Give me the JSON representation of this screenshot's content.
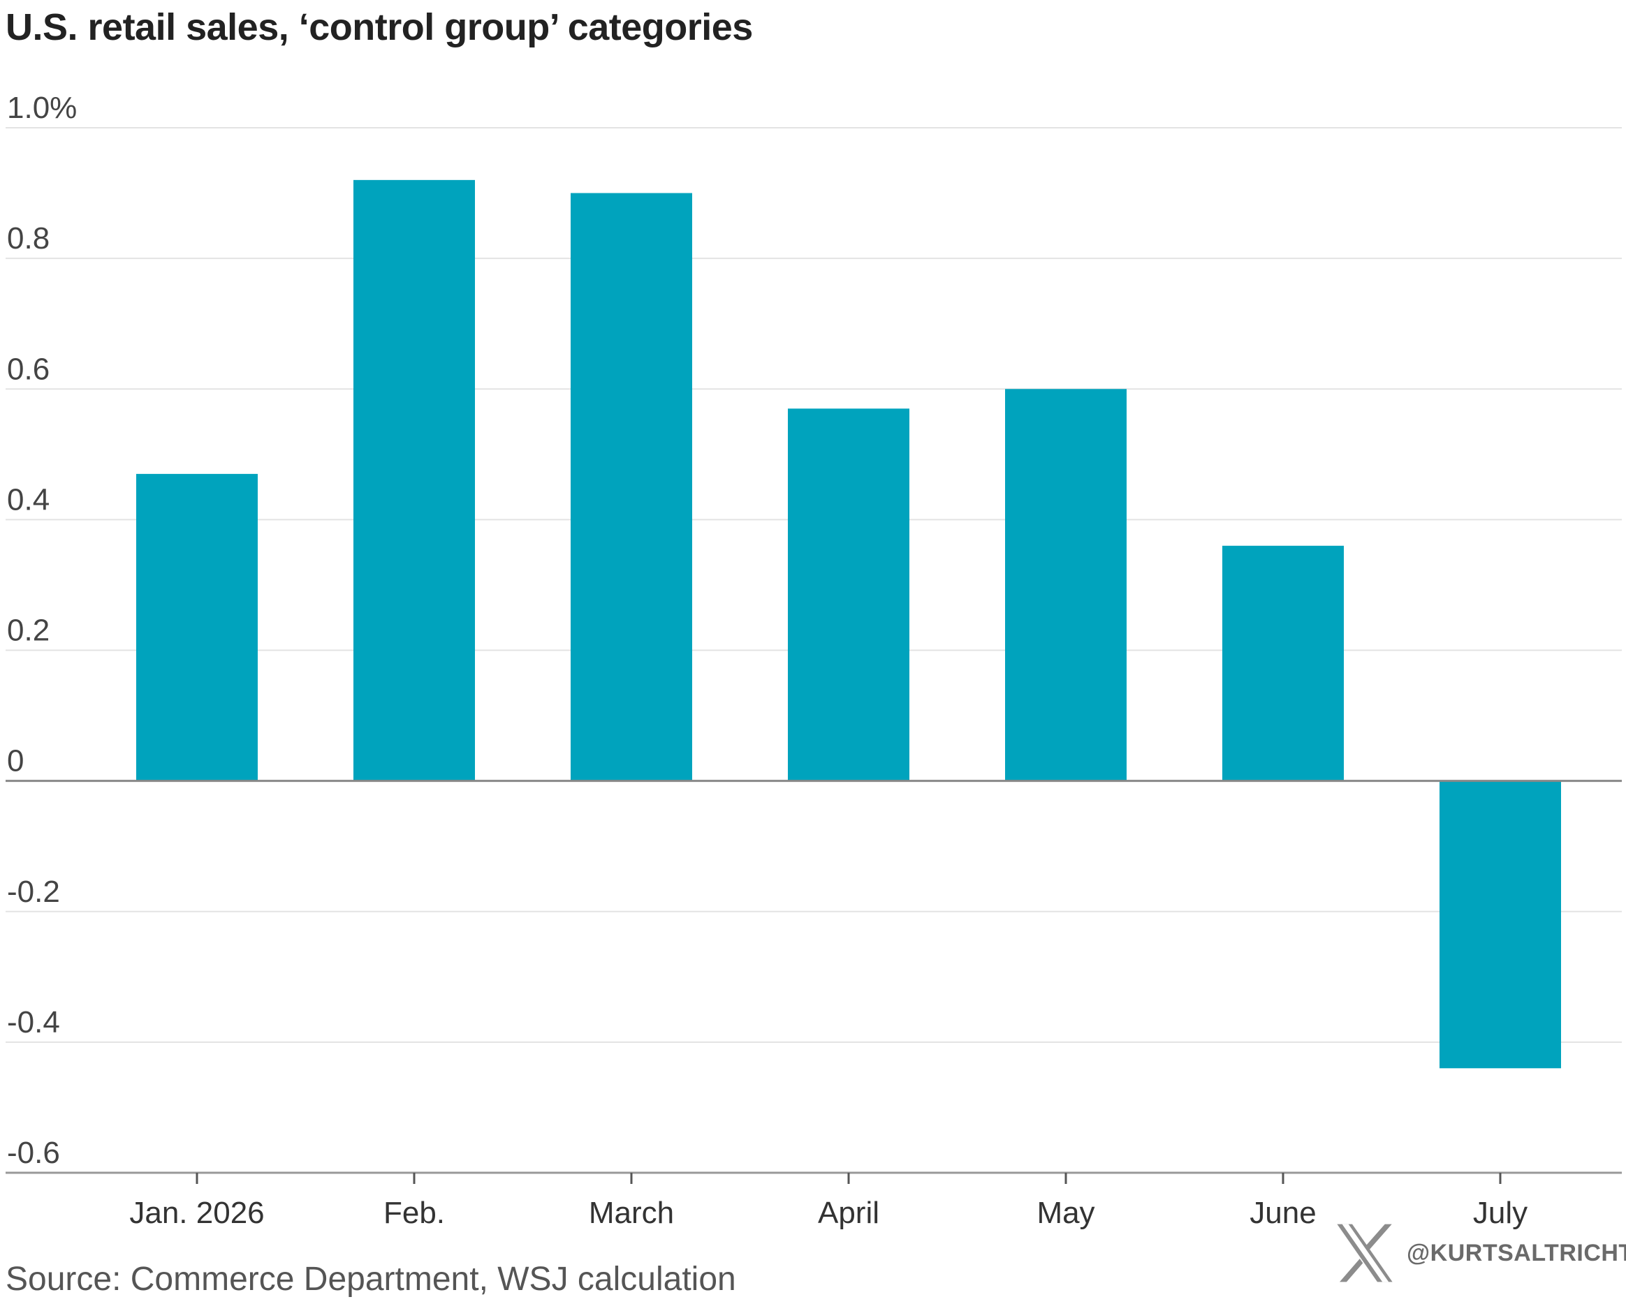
{
  "chart_data": {
    "type": "bar",
    "title": "U.S. retail sales, ‘control group’ categories",
    "categories": [
      "Jan. 2026",
      "Feb.",
      "March",
      "April",
      "May",
      "June",
      "July"
    ],
    "values": [
      0.47,
      0.92,
      0.9,
      0.57,
      0.6,
      0.36,
      -0.44
    ],
    "ylim": [
      -0.6,
      1.0
    ],
    "yticks": [
      1.0,
      0.8,
      0.6,
      0.4,
      0.2,
      0,
      -0.2,
      -0.4,
      -0.6
    ],
    "ytick_labels": [
      "1.0%",
      "0.8",
      "0.6",
      "0.4",
      "0.2",
      "0",
      "-0.2",
      "-0.4",
      "-0.6"
    ],
    "xlabel": "",
    "ylabel": "",
    "grid": true,
    "legend": "none",
    "bar_color": "#00a3bd"
  },
  "footer": {
    "source": "Source: Commerce Department, WSJ calculation"
  },
  "watermark": {
    "handle": "@KURTSALTRICHTER",
    "icon": "x-logo-icon"
  },
  "colors": {
    "bar": "#00a3bd",
    "gridline": "#e3e3e3",
    "zero_line": "#888888",
    "axis": "#999999",
    "text": "#222222"
  }
}
